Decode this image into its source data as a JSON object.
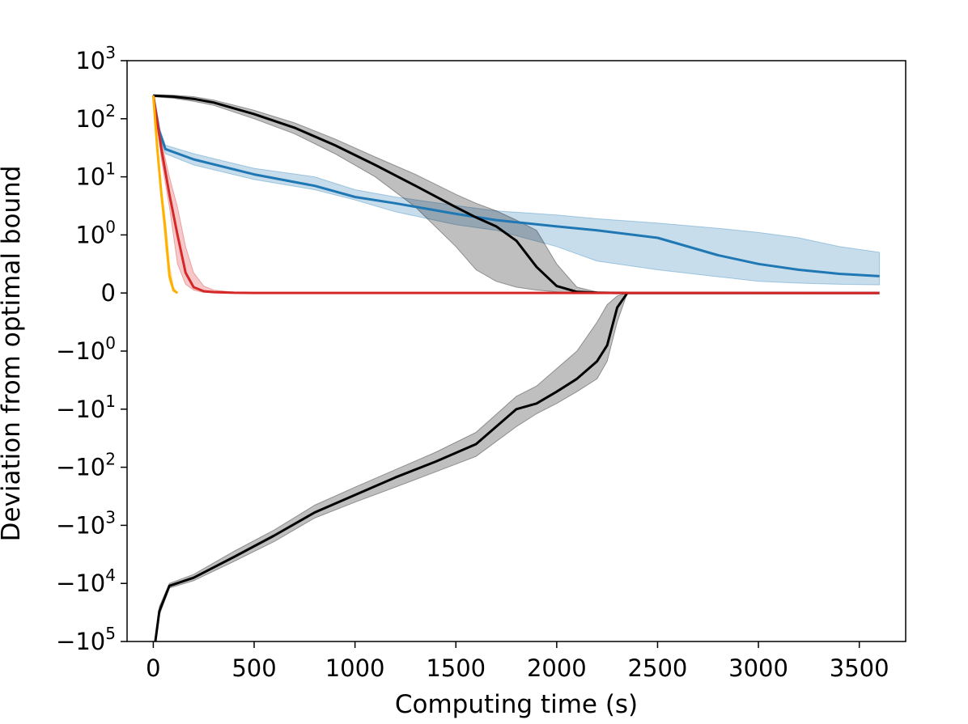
{
  "chart_data": {
    "type": "line",
    "title": "",
    "xlabel": "Computing time (s)",
    "ylabel": "Deviation from optimal bound",
    "xlim": [
      -130,
      3730
    ],
    "yscale": "symlog",
    "ylim": [
      -100000,
      1000
    ],
    "grid": false,
    "legend": "none",
    "x_ticks": [
      {
        "value": 0,
        "label": "0"
      },
      {
        "value": 500,
        "label": "500"
      },
      {
        "value": 1000,
        "label": "1000"
      },
      {
        "value": 1500,
        "label": "1500"
      },
      {
        "value": 2000,
        "label": "2000"
      },
      {
        "value": 2500,
        "label": "2500"
      },
      {
        "value": 3000,
        "label": "3000"
      },
      {
        "value": 3500,
        "label": "3500"
      }
    ],
    "y_ticks": [
      {
        "value": 1000,
        "base": "10",
        "exp": "3",
        "sign": ""
      },
      {
        "value": 100,
        "base": "10",
        "exp": "2",
        "sign": ""
      },
      {
        "value": 10,
        "base": "10",
        "exp": "1",
        "sign": ""
      },
      {
        "value": 1,
        "base": "10",
        "exp": "0",
        "sign": ""
      },
      {
        "value": 0,
        "base": "0",
        "exp": "",
        "sign": ""
      },
      {
        "value": -1,
        "base": "10",
        "exp": "0",
        "sign": "−"
      },
      {
        "value": -10,
        "base": "10",
        "exp": "1",
        "sign": "−"
      },
      {
        "value": -100,
        "base": "10",
        "exp": "2",
        "sign": "−"
      },
      {
        "value": -1000,
        "base": "10",
        "exp": "3",
        "sign": "−"
      },
      {
        "value": -10000,
        "base": "10",
        "exp": "4",
        "sign": "−"
      },
      {
        "value": -100000,
        "base": "10",
        "exp": "5",
        "sign": "−"
      }
    ],
    "series": [
      {
        "color": "#1f77b4",
        "x": [
          0,
          30,
          60,
          200,
          500,
          800,
          1000,
          1200,
          1500,
          1700,
          2000,
          2200,
          2500,
          2800,
          3000,
          3200,
          3400,
          3600
        ],
        "y": [
          250,
          60,
          30,
          20,
          11,
          7,
          4.5,
          3.5,
          2.3,
          1.8,
          1.4,
          1.2,
          0.95,
          0.65,
          0.5,
          0.4,
          0.33,
          0.29
        ],
        "band_upper": [
          250,
          70,
          35,
          25,
          14,
          10,
          6,
          4.5,
          3.2,
          2.6,
          2.2,
          1.9,
          1.6,
          1.3,
          1.1,
          0.95,
          0.8,
          0.7
        ],
        "band_lower": [
          250,
          50,
          25,
          16,
          9,
          6,
          4,
          2.5,
          1.5,
          1.2,
          0.8,
          0.55,
          0.4,
          0.28,
          0.2,
          0.17,
          0.15,
          0.14
        ]
      },
      {
        "color": "#000000",
        "x": [
          0,
          100,
          200,
          300,
          500,
          700,
          900,
          1100,
          1300,
          1500,
          1600,
          1700,
          1800,
          1900,
          2000,
          2100,
          2200,
          2300,
          2350,
          3600
        ],
        "y": [
          250,
          240,
          220,
          190,
          120,
          70,
          35,
          16,
          7,
          3,
          2,
          1.4,
          0.9,
          0.45,
          0.12,
          0.02,
          0.005,
          0.001,
          0,
          0
        ],
        "band_upper": [
          260,
          255,
          240,
          210,
          140,
          85,
          45,
          22,
          11,
          5,
          3.5,
          2.6,
          1.8,
          1.2,
          0.5,
          0.1,
          0.02,
          0.005,
          0,
          0
        ],
        "band_lower": [
          240,
          225,
          200,
          170,
          100,
          55,
          25,
          10,
          3,
          0.8,
          0.4,
          0.2,
          0.1,
          0.05,
          0.02,
          0.005,
          0.002,
          0,
          0,
          0
        ]
      },
      {
        "color": "#000000",
        "x": [
          10,
          30,
          80,
          200,
          400,
          600,
          800,
          1000,
          1200,
          1400,
          1600,
          1800,
          1900,
          2000,
          2100,
          2200,
          2250,
          2300,
          2350
        ],
        "y": [
          -100000,
          -30000,
          -11000,
          -8000,
          -3500,
          -1500,
          -600,
          -300,
          -150,
          -80,
          -40,
          -10,
          -8,
          -5,
          -3,
          -1.5,
          -0.9,
          -0.25,
          0
        ],
        "band_upper": [
          -100000,
          -25000,
          -10000,
          -7000,
          -2800,
          -1200,
          -450,
          -220,
          -110,
          -55,
          -25,
          -6,
          -4,
          -2,
          -1,
          -0.5,
          -0.2,
          -0.05,
          0
        ],
        "band_lower": [
          -100000,
          -35000,
          -12000,
          -9000,
          -4200,
          -1900,
          -750,
          -400,
          -220,
          -120,
          -65,
          -20,
          -12,
          -8,
          -5,
          -3,
          -1.5,
          -0.5,
          0
        ]
      },
      {
        "color": "#d62728",
        "x": [
          0,
          40,
          80,
          120,
          160,
          200,
          250,
          300,
          400,
          500,
          3600
        ],
        "y": [
          250,
          30,
          5,
          1,
          0.35,
          0.1,
          0.03,
          0.015,
          0.004,
          0.001,
          0
        ],
        "band_upper": [
          250,
          40,
          10,
          3,
          0.8,
          0.35,
          0.12,
          0.05,
          0.015,
          0.005,
          0
        ],
        "band_lower": [
          250,
          20,
          3,
          0.5,
          0.15,
          0.05,
          0.01,
          0.005,
          0.001,
          0,
          0
        ]
      },
      {
        "color": "#ffb000",
        "x": [
          0,
          20,
          40,
          60,
          80,
          100,
          120
        ],
        "y": [
          250,
          30,
          5,
          1.2,
          0.3,
          0.05,
          0
        ],
        "band_upper": [
          250,
          35,
          7,
          1.8,
          0.5,
          0.1,
          0
        ],
        "band_lower": [
          250,
          25,
          4,
          0.8,
          0.2,
          0.02,
          0
        ]
      }
    ]
  }
}
